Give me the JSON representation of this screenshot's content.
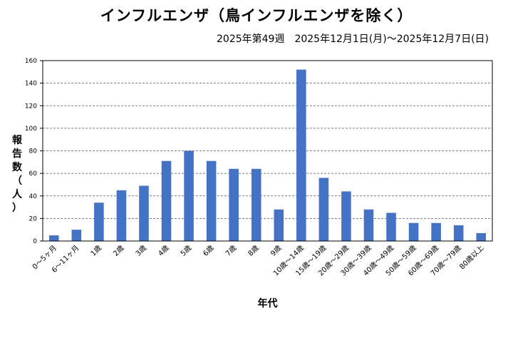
{
  "chart_data": {
    "type": "bar",
    "title": "インフルエンザ（鳥インフルエンザを除く）",
    "subtitle": "2025年第49週　2025年12月1日(月)〜2025年12月7日(日)",
    "xlabel": "年代",
    "ylabel": "報告数（人）",
    "ylim": [
      0,
      160
    ],
    "yticks": [
      0,
      20,
      40,
      60,
      80,
      100,
      120,
      140,
      160
    ],
    "grid": true,
    "bar_color": "#4472C4",
    "categories": [
      "0〜5ヶ月",
      "6〜11ヶ月",
      "1歳",
      "2歳",
      "3歳",
      "4歳",
      "5歳",
      "6歳",
      "7歳",
      "8歳",
      "9歳",
      "10歳〜14歳",
      "15歳〜19歳",
      "20歳〜29歳",
      "30歳〜39歳",
      "40歳〜49歳",
      "50歳〜59歳",
      "60歳〜69歳",
      "70歳〜79歳",
      "80歳以上"
    ],
    "values": [
      5,
      10,
      34,
      45,
      49,
      71,
      80,
      71,
      64,
      64,
      28,
      152,
      56,
      44,
      28,
      25,
      16,
      16,
      14,
      7
    ]
  }
}
